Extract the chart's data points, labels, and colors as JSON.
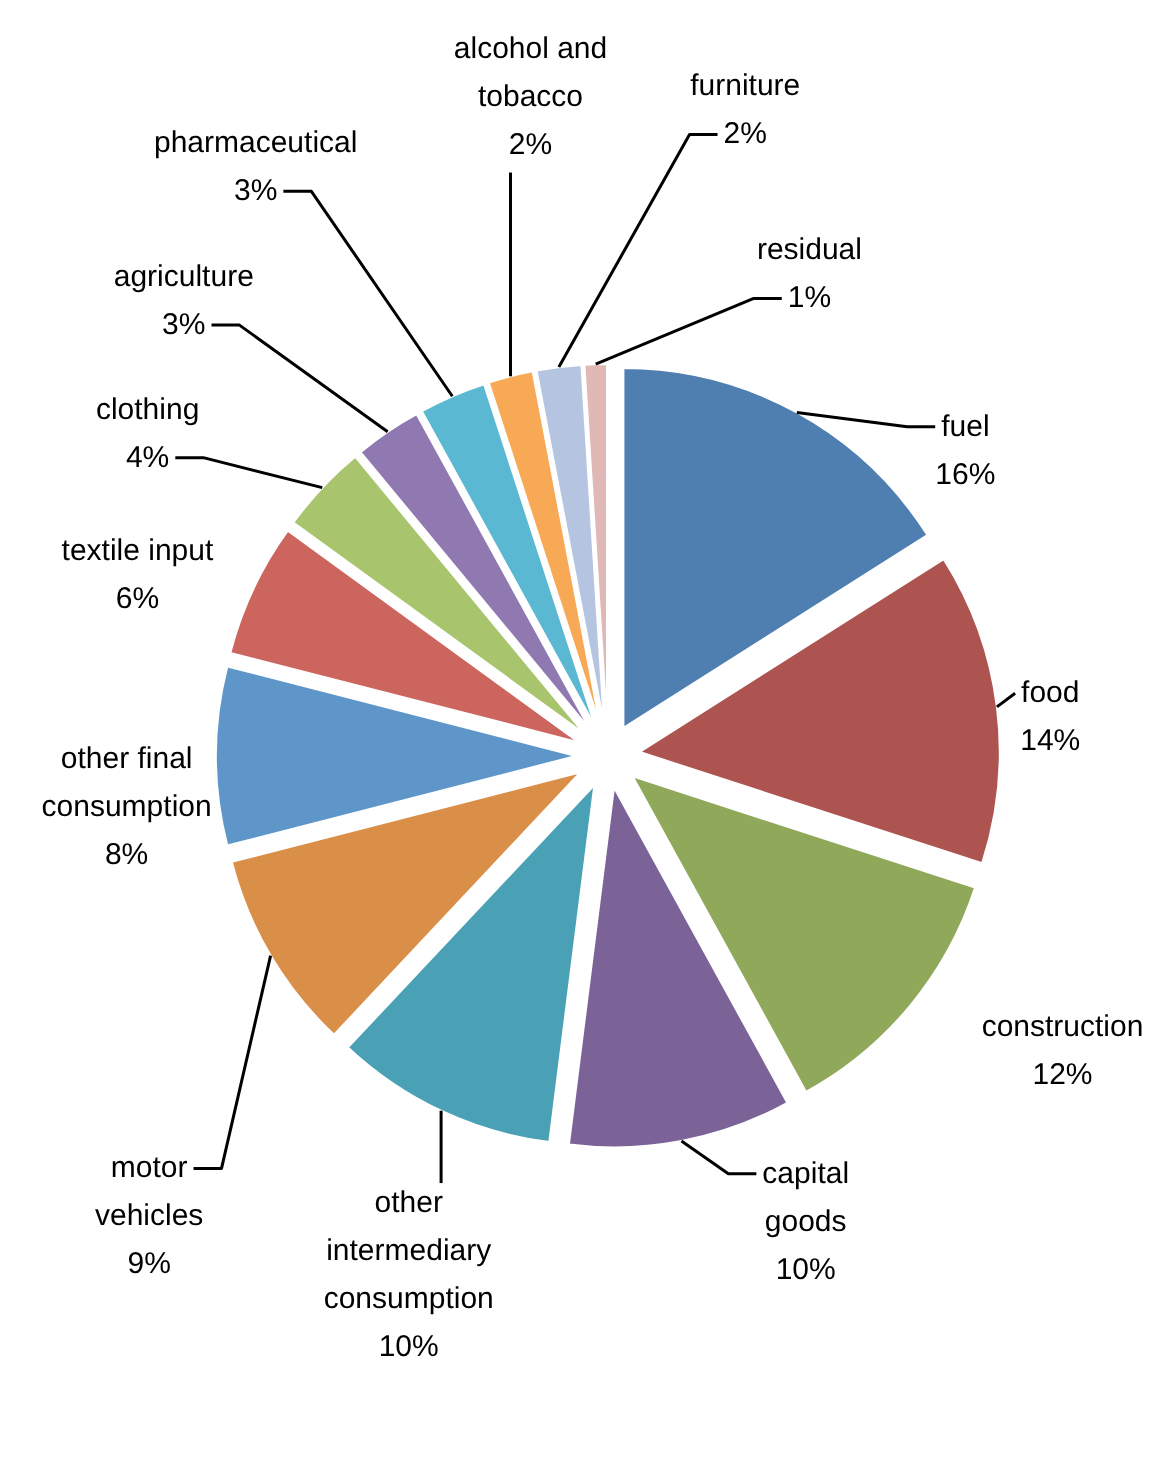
{
  "chart_data": {
    "type": "pie",
    "categories": [
      "fuel",
      "food",
      "construction",
      "capital goods",
      "other intermediary consumption",
      "motor vehicles",
      "other final consumption",
      "textile input",
      "clothing",
      "agriculture",
      "pharmaceutical",
      "alcohol and tobacco",
      "furniture",
      "residual"
    ],
    "values": [
      16,
      14,
      12,
      10,
      10,
      9,
      8,
      6,
      4,
      3,
      3,
      2,
      2,
      1
    ],
    "value_labels": [
      "16%",
      "14%",
      "12%",
      "10%",
      "10%",
      "9%",
      "8%",
      "6%",
      "4%",
      "3%",
      "3%",
      "2%",
      "2%",
      "1%"
    ],
    "colors": [
      "#4f7eb0",
      "#ad5450",
      "#8fa85a",
      "#7b6398",
      "#4aa0b5",
      "#d98f47",
      "#5f96ca",
      "#cc655e",
      "#a8c46c",
      "#9079b1",
      "#5ab8d2",
      "#f8a955",
      "#b5c5e1",
      "#e0b8b6"
    ]
  }
}
